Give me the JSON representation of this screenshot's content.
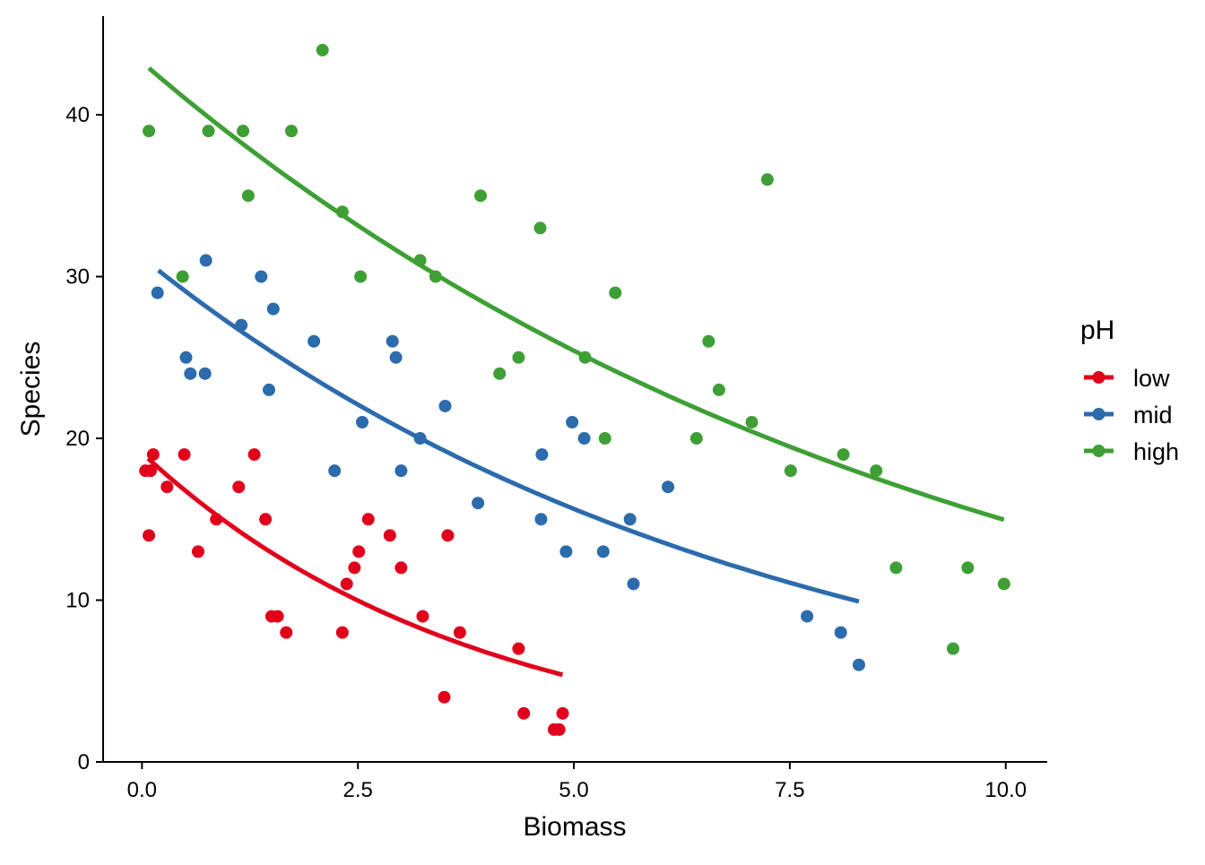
{
  "chart_data": {
    "type": "scatter",
    "title": "",
    "xlabel": "Biomass",
    "ylabel": "Species",
    "xlim": [
      -0.45,
      10.48
    ],
    "ylim": [
      0,
      46.1
    ],
    "xticks": [
      0,
      2.5,
      5,
      7.5,
      10
    ],
    "xtick_labels": [
      "0.0",
      "2.5",
      "5.0",
      "7.5",
      "10.0"
    ],
    "yticks": [
      0,
      10,
      20,
      30,
      40
    ],
    "ytick_labels": [
      "0",
      "10",
      "20",
      "30",
      "40"
    ],
    "grid": false,
    "legend": {
      "title": "pH",
      "position": "right"
    },
    "series": [
      {
        "name": "low",
        "color": "#E0001C",
        "fit": {
          "model": "exp",
          "intercept_log": 2.95,
          "slope_log": -0.26,
          "x_range": [
            0.07,
            4.87
          ]
        },
        "points": [
          [
            0.04,
            18
          ],
          [
            0.1,
            18
          ],
          [
            0.13,
            19
          ],
          [
            0.08,
            14
          ],
          [
            0.29,
            17
          ],
          [
            0.49,
            19
          ],
          [
            0.65,
            13
          ],
          [
            0.86,
            15
          ],
          [
            1.12,
            17
          ],
          [
            1.3,
            19
          ],
          [
            1.43,
            15
          ],
          [
            1.5,
            9
          ],
          [
            1.57,
            9
          ],
          [
            1.67,
            8
          ],
          [
            2.32,
            8
          ],
          [
            2.37,
            11
          ],
          [
            2.46,
            12
          ],
          [
            2.51,
            13
          ],
          [
            2.62,
            15
          ],
          [
            2.87,
            14
          ],
          [
            3.0,
            12
          ],
          [
            3.25,
            9
          ],
          [
            3.5,
            4
          ],
          [
            3.54,
            14
          ],
          [
            3.68,
            8
          ],
          [
            4.36,
            7
          ],
          [
            4.42,
            3
          ],
          [
            4.77,
            2
          ],
          [
            4.83,
            2
          ],
          [
            4.87,
            3
          ]
        ]
      },
      {
        "name": "mid",
        "color": "#2C6BAC",
        "fit": {
          "model": "exp",
          "intercept_log": 3.44,
          "slope_log": -0.138,
          "x_range": [
            0.19,
            8.3
          ]
        },
        "points": [
          [
            0.18,
            29
          ],
          [
            0.51,
            25
          ],
          [
            0.56,
            24
          ],
          [
            0.73,
            24
          ],
          [
            0.74,
            31
          ],
          [
            1.15,
            27
          ],
          [
            1.38,
            30
          ],
          [
            1.47,
            23
          ],
          [
            1.52,
            28
          ],
          [
            1.99,
            26
          ],
          [
            2.23,
            18
          ],
          [
            2.55,
            21
          ],
          [
            2.9,
            26
          ],
          [
            2.94,
            25
          ],
          [
            3.22,
            20
          ],
          [
            3.0,
            18
          ],
          [
            3.51,
            22
          ],
          [
            3.89,
            16
          ],
          [
            4.63,
            19
          ],
          [
            4.62,
            15
          ],
          [
            4.91,
            13
          ],
          [
            4.98,
            21
          ],
          [
            5.12,
            20
          ],
          [
            5.34,
            13
          ],
          [
            5.65,
            15
          ],
          [
            5.69,
            11
          ],
          [
            6.09,
            17
          ],
          [
            7.7,
            9
          ],
          [
            8.09,
            8
          ],
          [
            8.3,
            6
          ]
        ]
      },
      {
        "name": "high",
        "color": "#3E9F35",
        "fit": {
          "model": "exp",
          "intercept_log": 3.767,
          "slope_log": -0.1063,
          "x_range": [
            0.08,
            9.98
          ]
        },
        "points": [
          [
            0.08,
            39
          ],
          [
            0.47,
            30
          ],
          [
            0.77,
            39
          ],
          [
            1.17,
            39
          ],
          [
            1.23,
            35
          ],
          [
            1.73,
            39
          ],
          [
            2.09,
            44
          ],
          [
            2.32,
            34
          ],
          [
            2.53,
            30
          ],
          [
            3.22,
            31
          ],
          [
            3.4,
            30
          ],
          [
            3.92,
            35
          ],
          [
            4.14,
            24
          ],
          [
            4.36,
            25
          ],
          [
            4.61,
            33
          ],
          [
            5.13,
            25
          ],
          [
            5.36,
            20
          ],
          [
            5.48,
            29
          ],
          [
            6.42,
            20
          ],
          [
            6.56,
            26
          ],
          [
            6.68,
            23
          ],
          [
            7.06,
            21
          ],
          [
            7.24,
            36
          ],
          [
            7.51,
            18
          ],
          [
            8.12,
            19
          ],
          [
            8.5,
            18
          ],
          [
            8.73,
            12
          ],
          [
            9.39,
            7
          ],
          [
            9.56,
            12
          ],
          [
            9.98,
            11
          ]
        ]
      }
    ]
  }
}
